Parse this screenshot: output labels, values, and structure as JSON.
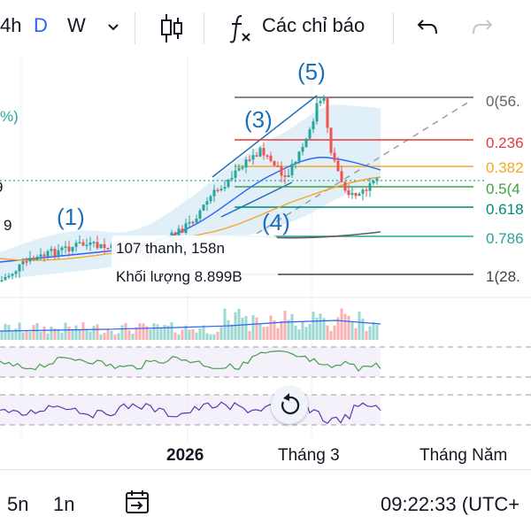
{
  "toolbar": {
    "interval_4h": "4h",
    "interval_d": "D",
    "interval_w": "W",
    "indicators_label": "Các chỉ báo"
  },
  "chart": {
    "fib_levels": [
      "0(56.",
      "0.236",
      "0.382",
      "0.5(4",
      "0.618",
      "0.786",
      "1(28."
    ],
    "wave_labels": [
      "(1)",
      "(3)",
      "(4)",
      "(5)"
    ],
    "left_clipped_labels": [
      "%)",
      "9",
      "9"
    ],
    "tooltip": {
      "line1": "107 thanh, 158n",
      "line2": "Khối lượng 8.899B"
    },
    "colors": {
      "candle_up": "#26a69a",
      "candle_down": "#ef5350",
      "fib_red": "#e53935",
      "fib_orange": "#f5a623",
      "fib_green": "#2e7d32",
      "fib_teal": "#00897b",
      "wave_blue": "#1e6fb8",
      "rsi": "#43a047",
      "stoch": "#5e35b1"
    }
  },
  "time_axis": {
    "labels": [
      "2026",
      "Tháng 3",
      "Tháng Năm"
    ]
  },
  "bottom_bar": {
    "range_5n": "5n",
    "range_1n": "1n",
    "clock": "09:22:33 (UTC+"
  }
}
